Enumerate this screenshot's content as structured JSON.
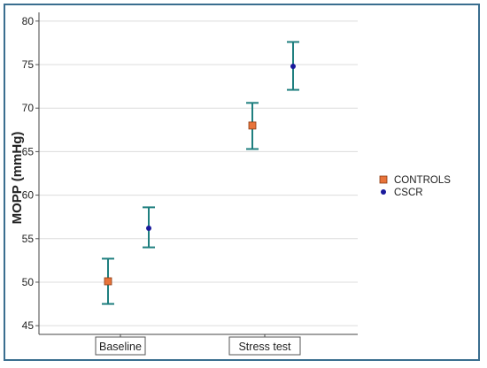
{
  "chart_data": {
    "type": "scatter",
    "categories": [
      "Baseline",
      "Stress test"
    ],
    "ylabel": "MOPP (mmHg)",
    "xlabel": "",
    "ylim": [
      44,
      81
    ],
    "yticks": [
      45,
      50,
      55,
      60,
      65,
      70,
      75,
      80
    ],
    "grid": true,
    "legend_position": "right",
    "series": [
      {
        "name": "CONTROLS",
        "marker": "square",
        "color": "#e8743b",
        "values": [
          50.1,
          68.0
        ],
        "error_low": [
          47.5,
          65.3
        ],
        "error_high": [
          52.7,
          70.6
        ]
      },
      {
        "name": "CSCR",
        "marker": "circle",
        "color": "#1a1a9c",
        "values": [
          56.2,
          74.8
        ],
        "error_low": [
          54.0,
          72.1
        ],
        "error_high": [
          58.6,
          77.6
        ]
      }
    ],
    "errorbar_color": "#1f7f7f"
  }
}
